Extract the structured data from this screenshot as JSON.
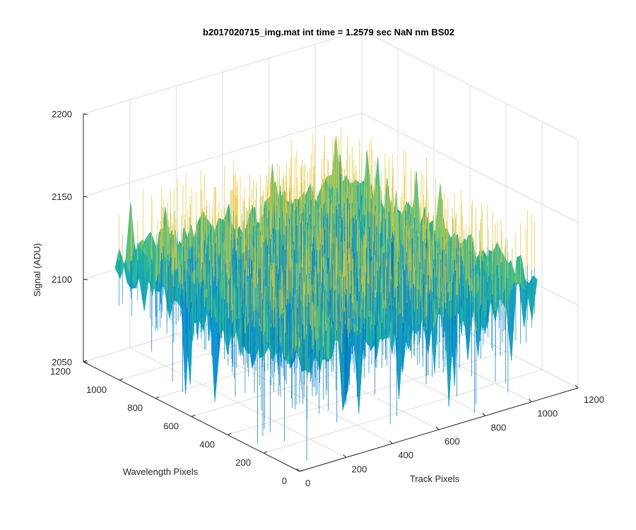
{
  "chart_data": {
    "type": "surface",
    "title": "b2017020715_img.mat int time = 1.2579 sec  NaN nm BS02",
    "xlabel": "Track Pixels",
    "ylabel": "Wavelength Pixels",
    "zlabel": "Signal (ADU)",
    "xlim": [
      0,
      1200
    ],
    "ylim": [
      0,
      1200
    ],
    "zlim": [
      2050,
      2200
    ],
    "x_ticks": [
      0,
      200,
      400,
      600,
      800,
      1000,
      1200
    ],
    "y_ticks": [
      0,
      200,
      400,
      600,
      800,
      1000,
      1200
    ],
    "z_ticks": [
      2050,
      2100,
      2150,
      2200
    ],
    "x_tick_labels": [
      "0",
      "200",
      "400",
      "600",
      "800",
      "1000",
      "1200"
    ],
    "y_tick_labels": [
      "0",
      "200",
      "400",
      "600",
      "800",
      "1000",
      "1200"
    ],
    "z_tick_labels": [
      "2050",
      "2100",
      "2150",
      "2200"
    ],
    "grid": true,
    "colormap": "parula",
    "colors": {
      "low": "#0072BD",
      "mid": "#1FB4A0",
      "high": "#F2C230",
      "axis": "#262626",
      "grid": "#DCDCDC"
    },
    "surface_extent": {
      "x": [
        0,
        1024
      ],
      "y": [
        0,
        1024
      ]
    },
    "surface_stats": {
      "mean": 2120,
      "min_approx": 2060,
      "max_approx": 2165
    }
  }
}
